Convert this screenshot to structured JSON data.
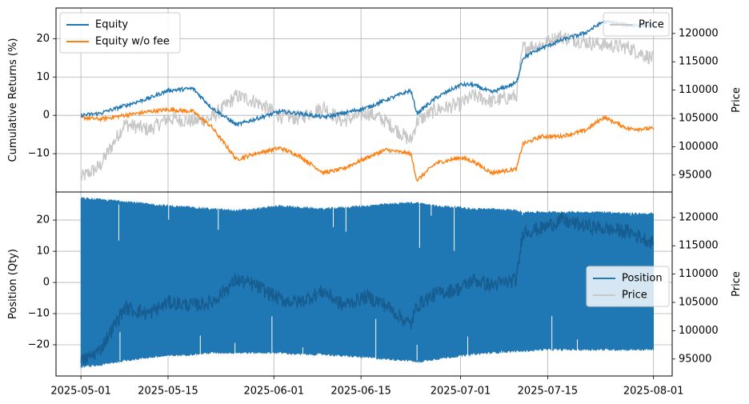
{
  "chart_data": [
    {
      "type": "line",
      "panel": "top",
      "xlabel": "",
      "ylabel": "Cumulative Returns (%)",
      "y2label": "Price",
      "x_dates": [
        "2025-05-01",
        "2025-05-04",
        "2025-05-08",
        "2025-05-12",
        "2025-05-15",
        "2025-05-19",
        "2025-05-22",
        "2025-05-26",
        "2025-05-29",
        "2025-06-02",
        "2025-06-05",
        "2025-06-09",
        "2025-06-12",
        "2025-06-16",
        "2025-06-19",
        "2025-06-23",
        "2025-06-24",
        "2025-06-27",
        "2025-07-01",
        "2025-07-03",
        "2025-07-06",
        "2025-07-10",
        "2025-07-11",
        "2025-07-14",
        "2025-07-17",
        "2025-07-21",
        "2025-07-24",
        "2025-07-28",
        "2025-08-01"
      ],
      "series": [
        {
          "name": "Equity",
          "axis": "left",
          "color": "#1f77b4",
          "values": [
            0.0,
            0.5,
            2.5,
            4.5,
            6.5,
            7.0,
            2.0,
            -2.5,
            -1.0,
            1.0,
            0.5,
            -0.5,
            0.5,
            2.0,
            4.0,
            6.5,
            0.5,
            4.5,
            8.0,
            8.0,
            6.0,
            8.5,
            15.0,
            17.5,
            19.5,
            21.5,
            24.5,
            23.5,
            23.5
          ]
        },
        {
          "name": "Equity w/o fee",
          "axis": "left",
          "color": "#ff7f0e",
          "values": [
            -0.5,
            -1.0,
            0.0,
            1.0,
            1.5,
            1.0,
            -3.0,
            -11.5,
            -10.0,
            -8.5,
            -10.5,
            -15.0,
            -14.0,
            -11.0,
            -9.0,
            -10.0,
            -17.0,
            -12.5,
            -11.0,
            -12.0,
            -15.0,
            -14.0,
            -7.5,
            -5.5,
            -5.5,
            -4.0,
            -0.5,
            -3.5,
            -3.5
          ]
        },
        {
          "name": "Price",
          "axis": "right",
          "color": "#c7c7c7",
          "values": [
            94500,
            96500,
            104000,
            103000,
            105000,
            104500,
            105000,
            109000,
            108000,
            105500,
            105000,
            107000,
            104500,
            106000,
            104500,
            101000,
            104500,
            106500,
            107500,
            109000,
            108000,
            109000,
            117500,
            118000,
            119500,
            118500,
            118000,
            117500,
            115500
          ]
        }
      ],
      "ylim": [
        -20,
        28
      ],
      "yticks": [
        -10,
        0,
        10,
        20
      ],
      "y2lim": [
        92000,
        124500
      ],
      "y2ticks": [
        95000,
        100000,
        105000,
        110000,
        115000,
        120000
      ],
      "legend_left": {
        "placement": "top-left",
        "entries": [
          "Equity",
          "Equity w/o fee"
        ]
      },
      "legend_right": {
        "placement": "top-right",
        "entries": [
          "Price"
        ]
      },
      "grid": true
    },
    {
      "type": "line",
      "panel": "bottom",
      "xlabel": "",
      "ylabel": "Position (Qty)",
      "y2label": "Price",
      "series": [
        {
          "name": "Position",
          "axis": "left",
          "color": "#1f77b4",
          "style": "dense oscillation between lower and upper bound",
          "upper_bound": [
            27.0,
            26.5,
            26.0,
            25.0,
            24.5,
            24.0,
            23.5,
            23.0,
            23.5,
            24.5,
            24.0,
            23.5,
            24.0,
            24.5,
            25.0,
            25.5,
            25.5,
            24.5,
            24.0,
            23.5,
            23.5,
            23.0,
            22.5,
            22.5,
            22.5,
            22.5,
            22.5,
            22.0,
            22.0
          ],
          "lower_bound": [
            -27.0,
            -26.5,
            -25.0,
            -24.0,
            -23.5,
            -23.0,
            -22.5,
            -22.5,
            -22.5,
            -22.5,
            -23.0,
            -23.0,
            -23.5,
            -24.0,
            -24.5,
            -25.0,
            -25.5,
            -24.5,
            -23.5,
            -23.0,
            -22.5,
            -22.0,
            -22.0,
            -21.5,
            -21.5,
            -21.5,
            -21.5,
            -21.5,
            -21.5
          ]
        },
        {
          "name": "Price",
          "axis": "right",
          "color": "#c7c7c7"
        }
      ],
      "ylim": [
        -30,
        29
      ],
      "yticks": [
        -20,
        -10,
        0,
        10,
        20
      ],
      "y2lim": [
        92000,
        124500
      ],
      "y2ticks": [
        95000,
        100000,
        105000,
        110000,
        115000,
        120000
      ],
      "legend": {
        "placement": "center-right",
        "entries": [
          "Position",
          "Price"
        ]
      },
      "grid": true
    }
  ],
  "x_axis": {
    "tick_labels": [
      "2025-05-01",
      "2025-05-15",
      "2025-06-01",
      "2025-06-15",
      "2025-07-01",
      "2025-07-15",
      "2025-08-01"
    ],
    "tick_dates": [
      "2025-05-01",
      "2025-05-15",
      "2025-06-01",
      "2025-06-15",
      "2025-07-01",
      "2025-07-15",
      "2025-08-01"
    ],
    "xlim": [
      "2025-04-27",
      "2025-08-04"
    ]
  }
}
